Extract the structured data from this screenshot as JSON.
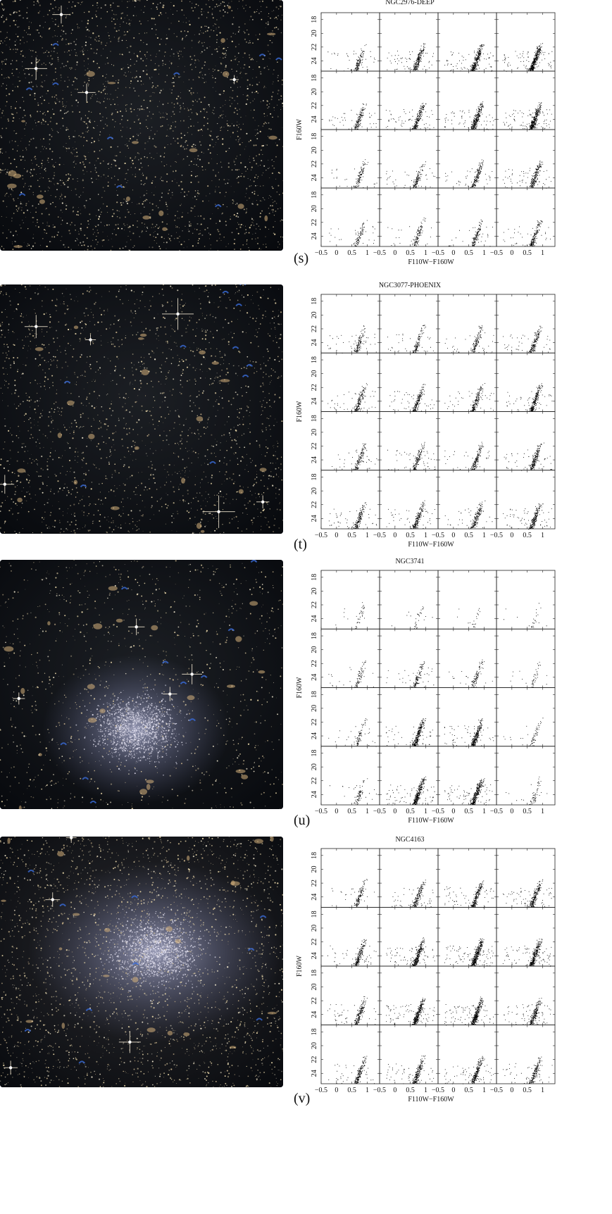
{
  "figure_rows": [
    {
      "tag": "(s)",
      "galaxy": "NGC2976-DEEP",
      "xlabel": "F110W−F160W",
      "ylabel": "F160W",
      "density": "high",
      "image_style": "dense-field"
    },
    {
      "tag": "(t)",
      "galaxy": "NGC3077-PHOENIX",
      "xlabel": "F110W−F160W",
      "ylabel": "F160W",
      "density": "medium",
      "image_style": "bright-stars"
    },
    {
      "tag": "(u)",
      "galaxy": "NGC3741",
      "xlabel": "F110W−F160W",
      "ylabel": "F160W",
      "density": "sparse",
      "image_style": "dwarf-glow"
    },
    {
      "tag": "(v)",
      "galaxy": "NGC4163",
      "xlabel": "F110W−F160W",
      "ylabel": "F160W",
      "density": "high",
      "image_style": "dwarf-glow-large"
    }
  ],
  "chart_data": [
    {
      "type": "scatter",
      "title": "NGC2976-DEEP",
      "grid": "4x4 panels",
      "xlabel": "F110W−F160W",
      "ylabel": "F160W",
      "xlim": [
        -0.5,
        1.4
      ],
      "ylim": [
        25.5,
        17
      ],
      "xticks": [
        -0.5,
        0,
        0.5,
        1
      ],
      "yticks": [
        18,
        20,
        22,
        24
      ],
      "panel_star_density": [
        [
          0.35,
          0.6,
          0.8,
          1.0
        ],
        [
          0.4,
          0.6,
          0.75,
          0.9
        ],
        [
          0.3,
          0.35,
          0.45,
          0.55
        ],
        [
          0.25,
          0.3,
          0.35,
          0.45
        ]
      ]
    },
    {
      "type": "scatter",
      "title": "NGC3077-PHOENIX",
      "grid": "4x4 panels",
      "xlabel": "F110W−F160W",
      "ylabel": "F160W",
      "xlim": [
        -0.5,
        1.4
      ],
      "ylim": [
        25.5,
        17
      ],
      "xticks": [
        -0.5,
        0,
        0.5,
        1
      ],
      "yticks": [
        18,
        20,
        22,
        24
      ],
      "panel_star_density": [
        [
          0.35,
          0.35,
          0.35,
          0.45
        ],
        [
          0.45,
          0.5,
          0.45,
          0.6
        ],
        [
          0.35,
          0.4,
          0.4,
          0.55
        ],
        [
          0.45,
          0.5,
          0.45,
          0.6
        ]
      ]
    },
    {
      "type": "scatter",
      "title": "NGC3741",
      "grid": "4x4 panels",
      "xlabel": "F110W−F160W",
      "ylabel": "F160W",
      "xlim": [
        -0.5,
        1.4
      ],
      "ylim": [
        25.5,
        17
      ],
      "xticks": [
        -0.5,
        0,
        0.5,
        1
      ],
      "yticks": [
        18,
        20,
        22,
        24
      ],
      "panel_star_density": [
        [
          0.1,
          0.08,
          0.05,
          0.06
        ],
        [
          0.2,
          0.3,
          0.25,
          0.1
        ],
        [
          0.2,
          0.7,
          0.7,
          0.15
        ],
        [
          0.2,
          0.85,
          0.85,
          0.15
        ]
      ]
    },
    {
      "type": "scatter",
      "title": "NGC4163",
      "grid": "4x4 panels",
      "xlabel": "F110W−F160W",
      "ylabel": "F160W",
      "xlim": [
        -0.5,
        1.4
      ],
      "ylim": [
        25.5,
        17
      ],
      "xticks": [
        -0.5,
        0,
        0.5,
        1
      ],
      "yticks": [
        18,
        20,
        22,
        24
      ],
      "panel_star_density": [
        [
          0.3,
          0.5,
          0.6,
          0.6
        ],
        [
          0.5,
          0.85,
          1.0,
          0.8
        ],
        [
          0.5,
          0.85,
          0.9,
          0.6
        ],
        [
          0.45,
          0.6,
          0.6,
          0.45
        ]
      ]
    }
  ]
}
